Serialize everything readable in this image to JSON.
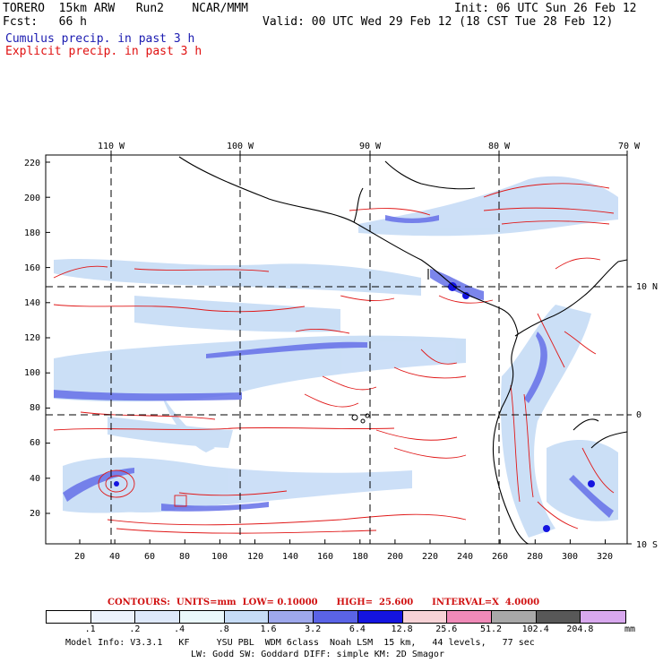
{
  "header": {
    "model": "TORERO  15km ARW   Run2    NCAR/MMM",
    "init": "Init: 06 UTC Sun 26 Feb 12",
    "fcst": "Fcst:   66 h",
    "valid": "Valid: 00 UTC Wed 29 Feb 12 (18 CST Tue 28 Feb 12)",
    "cumulus": "Cumulus precip. in past 3 h",
    "explicit": "Explicit precip. in past 3 h"
  },
  "map": {
    "lon_labels": [
      "110 W",
      "100 W",
      "90 W",
      "80 W",
      "70 W"
    ],
    "lat_labels": [
      "10 N",
      "0",
      "10 S"
    ],
    "y_ticks": [
      "220",
      "200",
      "180",
      "160",
      "140",
      "120",
      "100",
      "80",
      "60",
      "40",
      "20"
    ],
    "x_ticks": [
      "20",
      "40",
      "60",
      "80",
      "100",
      "120",
      "140",
      "160",
      "180",
      "200",
      "220",
      "240",
      "260",
      "280",
      "300",
      "320"
    ]
  },
  "contours": {
    "label": "CONTOURS:  UNITS=mm  LOW= 0.10000      HIGH=  25.600      INTERVAL=X  4.0000"
  },
  "colorbar": {
    "labels": [
      ".1",
      ".2",
      ".4",
      ".8",
      "1.6",
      "3.2",
      "6.4",
      "12.8",
      "25.6",
      "51.2",
      "102.4",
      "204.8"
    ],
    "unit": "mm",
    "colors": [
      "#ffffff",
      "#ecf2fc",
      "#dde8fa",
      "#eaf8fb",
      "#c6dcf6",
      "#9ea8ec",
      "#5a63e6",
      "#1414e0",
      "#f7d2d6",
      "#f08ab8",
      "#a8a8a8",
      "#585858",
      "#d8a8ee"
    ]
  },
  "footer": {
    "line1": "Model Info: V3.3.1   KF     YSU PBL  WDM 6class  Noah LSM  15 km,   44 levels,   77 sec",
    "line2": "LW: Godd SW: Goddard DIFF: simple KM: 2D Smagor"
  }
}
